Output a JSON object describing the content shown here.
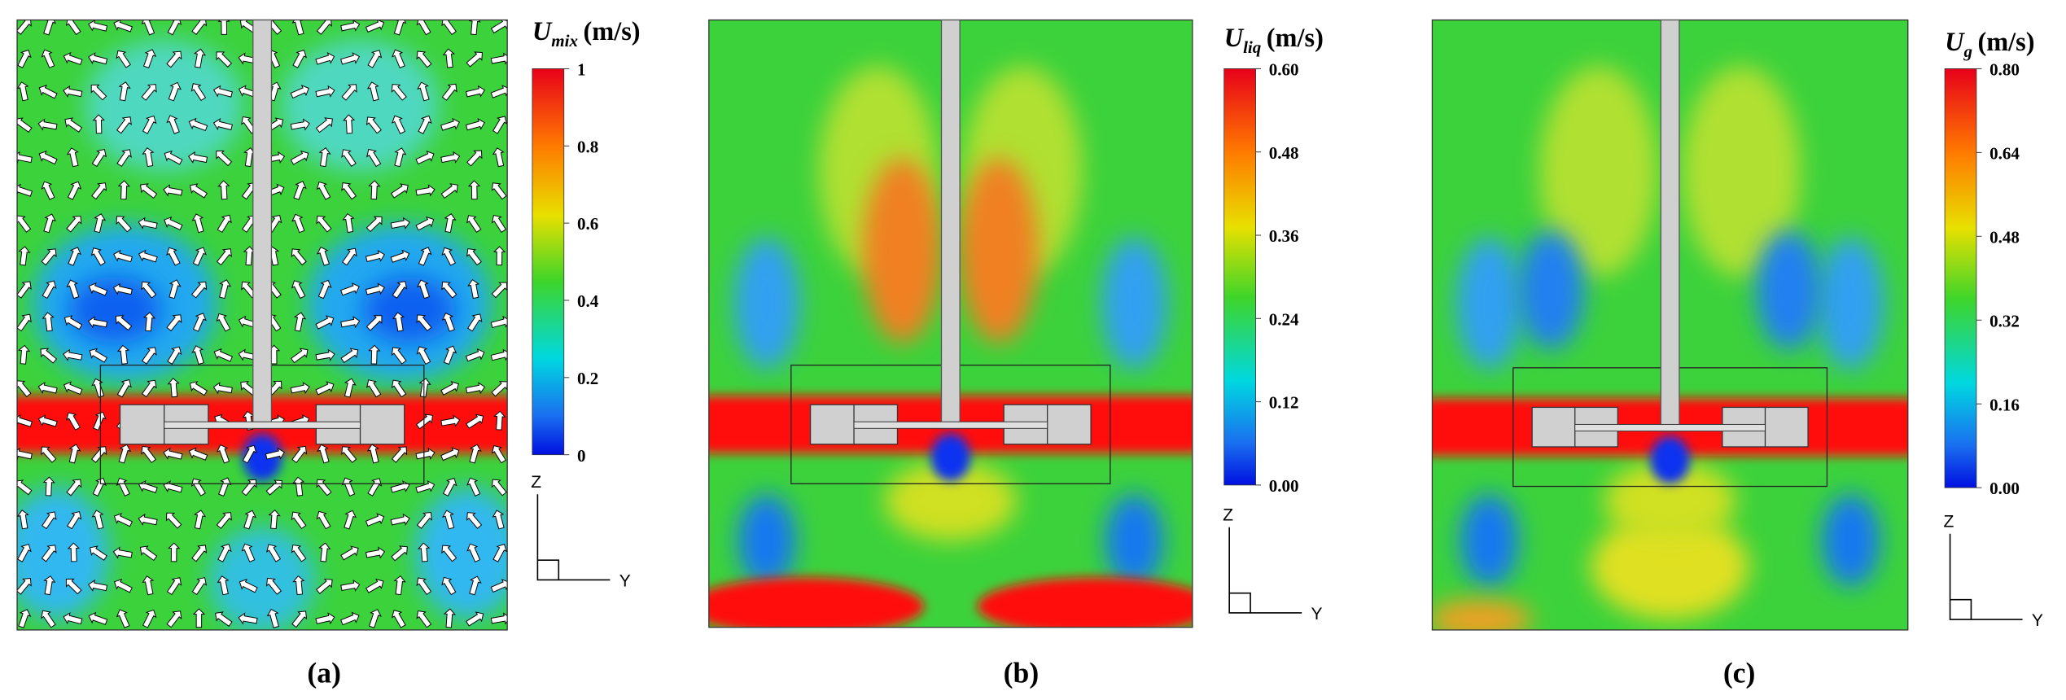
{
  "panels": [
    {
      "caption": "(a)",
      "symbol": "U",
      "subscript": "mix",
      "unit": "(m/s)",
      "colorbar_ticks": [
        "1",
        "0.8",
        "0.6",
        "0.4",
        "0.2",
        "0"
      ],
      "axis_z": "Z",
      "axis_y": "Y"
    },
    {
      "caption": "(b)",
      "symbol": "U",
      "subscript": "liq",
      "unit": "(m/s)",
      "colorbar_ticks": [
        "0.60",
        "0.48",
        "0.36",
        "0.24",
        "0.12",
        "0.00"
      ],
      "axis_z": "Z",
      "axis_y": "Y"
    },
    {
      "caption": "(c)",
      "symbol": "U",
      "subscript": "g",
      "unit": "(m/s)",
      "colorbar_ticks": [
        "0.80",
        "0.64",
        "0.48",
        "0.32",
        "0.16",
        "0.00"
      ],
      "axis_z": "Z",
      "axis_y": "Y"
    }
  ]
}
